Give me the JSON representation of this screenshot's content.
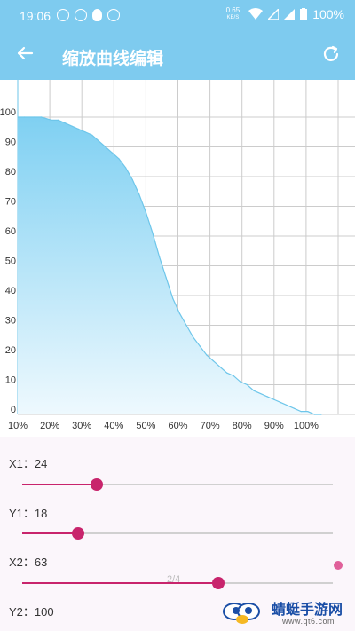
{
  "status_bar": {
    "time": "19:06",
    "net_speed_value": "0.65",
    "net_speed_unit": "KB/S",
    "battery": "100%"
  },
  "app_bar": {
    "title": "缩放曲线编辑",
    "back_icon": "arrow-left-icon",
    "refresh_icon": "refresh-icon"
  },
  "chart_data": {
    "type": "area",
    "x_ticks": [
      "10%",
      "20%",
      "30%",
      "40%",
      "50%",
      "60%",
      "70%",
      "80%",
      "90%",
      "100%"
    ],
    "y_ticks": [
      "0",
      "10",
      "20",
      "30",
      "40",
      "50",
      "60",
      "70",
      "80",
      "90",
      "100"
    ],
    "xlim": [
      10,
      100
    ],
    "ylim": [
      0,
      100
    ],
    "grid": true,
    "x": [
      10,
      12,
      13,
      15,
      17,
      20,
      22,
      24,
      26,
      28,
      30,
      32,
      34,
      36,
      38,
      40,
      42,
      44,
      46,
      48,
      50,
      52,
      54,
      56,
      58,
      60,
      62,
      64,
      66,
      68,
      70,
      72,
      74,
      76,
      78,
      80,
      82,
      84,
      86,
      88,
      90,
      92,
      94,
      96,
      98,
      100
    ],
    "y": [
      100,
      100,
      100,
      100,
      100,
      99,
      99,
      98,
      97,
      96,
      95,
      94,
      92,
      90,
      88,
      86,
      83,
      79,
      74,
      68,
      61,
      53,
      46,
      39,
      34,
      30,
      26,
      23,
      20,
      18,
      16,
      14,
      13,
      11,
      10,
      8,
      7,
      6,
      5,
      4,
      3,
      2,
      1,
      1,
      0,
      0
    ],
    "colors": {
      "line": "#6ec6ea",
      "fill_top": "#7fd0f2",
      "fill_bottom": "#eef9fe",
      "grid": "#cccccc"
    }
  },
  "sliders": [
    {
      "label": "X1：24",
      "value": 24
    },
    {
      "label": "Y1：18",
      "value": 18
    },
    {
      "label": "X2：63",
      "value": 63
    },
    {
      "label": "Y2：100",
      "value": 100
    }
  ],
  "pager": "2/4",
  "watermark": {
    "text": "蜻蜓手游网",
    "sub": "www.qt6.com"
  }
}
